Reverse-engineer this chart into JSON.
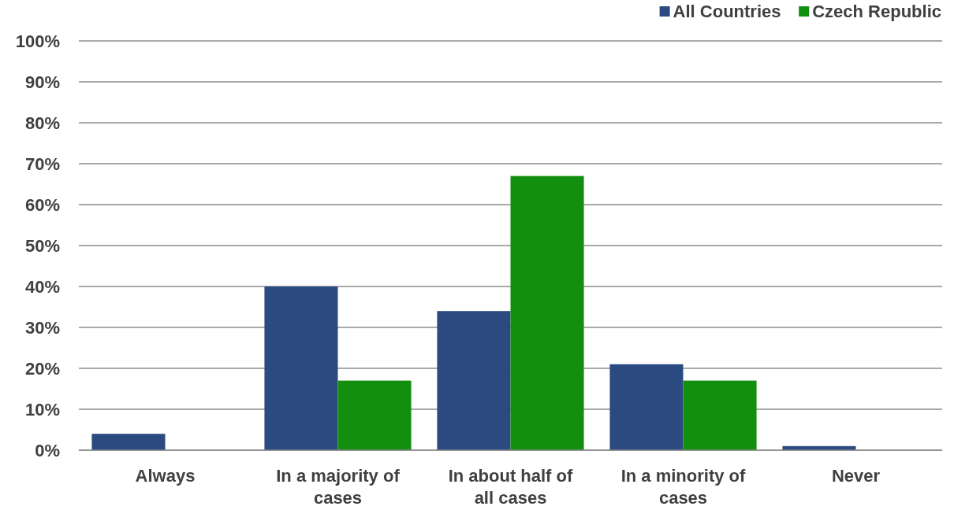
{
  "chart_data": {
    "type": "bar",
    "categories": [
      "Always",
      "In a majority of cases",
      "In about half of all cases",
      "In a minority of cases",
      "Never"
    ],
    "series": [
      {
        "name": "All Countries",
        "color": "#2a4a80",
        "values": [
          4,
          40,
          34,
          21,
          1
        ]
      },
      {
        "name": "Czech Republic",
        "color": "#138f10",
        "values": [
          0,
          17,
          67,
          17,
          0
        ]
      }
    ],
    "ylim": [
      0,
      100
    ],
    "yticks": [
      {
        "value": 0,
        "label": "0%"
      },
      {
        "value": 10,
        "label": "10%"
      },
      {
        "value": 20,
        "label": "20%"
      },
      {
        "value": 30,
        "label": "30%"
      },
      {
        "value": 40,
        "label": "40%"
      },
      {
        "value": 50,
        "label": "50%"
      },
      {
        "value": 60,
        "label": "60%"
      },
      {
        "value": 70,
        "label": "70%"
      },
      {
        "value": 80,
        "label": "80%"
      },
      {
        "value": 90,
        "label": "90%"
      },
      {
        "value": 100,
        "label": "100%"
      }
    ],
    "grid": "y",
    "legend": "top right"
  }
}
